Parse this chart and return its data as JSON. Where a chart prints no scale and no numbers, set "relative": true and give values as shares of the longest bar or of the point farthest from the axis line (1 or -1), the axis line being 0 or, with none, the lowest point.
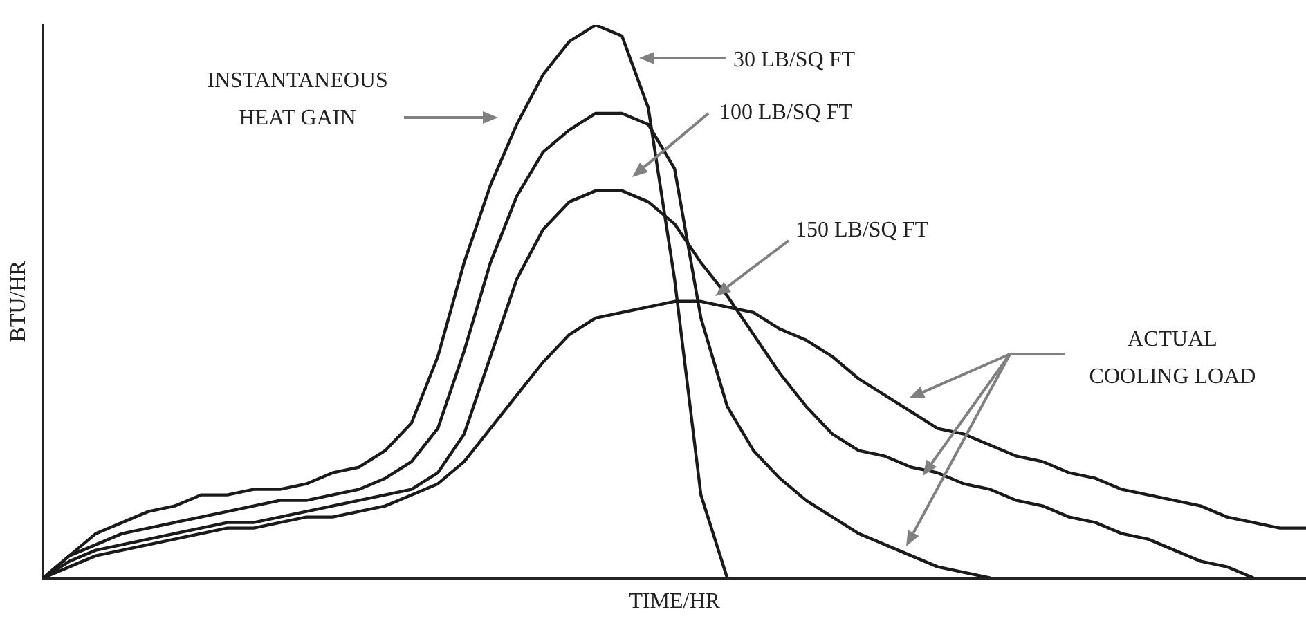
{
  "chart_data": {
    "type": "line",
    "relative": true,
    "xlabel": "TIME/HR",
    "ylabel": "BTU/HR",
    "marker": "none",
    "grid": false,
    "legend": false,
    "annotations": [
      "30 LB/SQ FT",
      "INSTANTANEOUS HEAT GAIN",
      "100 LB/SQ FT",
      "150 LB/SQ FT",
      "ACTUAL COOLING LOAD"
    ],
    "categories": [
      null,
      null,
      null,
      null,
      null,
      null,
      null,
      null,
      null,
      null,
      null,
      null,
      null,
      null,
      null,
      null,
      null,
      null,
      null,
      null,
      null,
      null,
      null,
      null,
      null,
      null,
      null,
      null,
      null,
      null,
      null,
      null,
      null,
      null,
      null,
      null,
      null,
      null,
      null,
      null,
      null,
      null,
      null,
      null,
      null,
      null,
      null,
      null,
      null
    ],
    "series": [
      {
        "color": "#1a1a1a",
        "values": [
          0,
          0.04,
          0.08,
          0.1,
          0.12,
          0.13,
          0.15,
          0.15,
          0.16,
          0.16,
          0.17,
          0.19,
          0.2,
          0.23,
          0.28,
          0.4,
          0.57,
          0.71,
          0.82,
          0.91,
          0.97,
          1,
          0.98,
          0.85,
          0.54,
          0.15,
          0,
          null,
          null,
          null,
          null,
          null,
          null,
          null,
          null,
          null,
          null,
          null,
          null,
          null,
          null,
          null,
          null,
          null,
          null,
          null,
          null,
          null,
          null
        ]
      },
      {
        "color": "#1a1a1a",
        "values": [
          0,
          0.04,
          0.06,
          0.08,
          0.09,
          0.1,
          0.11,
          0.12,
          0.13,
          0.14,
          0.14,
          0.15,
          0.16,
          0.18,
          0.21,
          0.27,
          0.41,
          0.57,
          0.69,
          0.77,
          0.81,
          0.84,
          0.84,
          0.82,
          0.74,
          0.47,
          0.31,
          0.23,
          0.18,
          0.14,
          0.11,
          0.08,
          0.06,
          0.04,
          0.02,
          0.01,
          0,
          null,
          null,
          null,
          null,
          null,
          null,
          null,
          null,
          null,
          null,
          null,
          null
        ]
      },
      {
        "color": "#1a1a1a",
        "values": [
          0,
          0.03,
          0.05,
          0.06,
          0.07,
          0.08,
          0.09,
          0.1,
          0.1,
          0.11,
          0.12,
          0.13,
          0.14,
          0.15,
          0.16,
          0.19,
          0.26,
          0.4,
          0.54,
          0.63,
          0.68,
          0.7,
          0.7,
          0.68,
          0.64,
          0.57,
          0.51,
          0.44,
          0.37,
          0.31,
          0.26,
          0.23,
          0.22,
          0.2,
          0.19,
          0.17,
          0.16,
          0.14,
          0.13,
          0.11,
          0.1,
          0.08,
          0.07,
          0.05,
          0.03,
          0.02,
          0,
          null,
          null
        ]
      },
      {
        "color": "#1a1a1a",
        "values": [
          0,
          0.02,
          0.04,
          0.05,
          0.06,
          0.07,
          0.08,
          0.09,
          0.09,
          0.1,
          0.11,
          0.11,
          0.12,
          0.13,
          0.15,
          0.17,
          0.21,
          0.27,
          0.33,
          0.39,
          0.44,
          0.47,
          0.48,
          0.49,
          0.5,
          0.5,
          0.49,
          0.48,
          0.45,
          0.43,
          0.4,
          0.36,
          0.33,
          0.3,
          0.27,
          0.26,
          0.24,
          0.22,
          0.21,
          0.19,
          0.18,
          0.16,
          0.15,
          0.14,
          0.13,
          0.11,
          0.1,
          0.09,
          0.09
        ]
      }
    ]
  }
}
